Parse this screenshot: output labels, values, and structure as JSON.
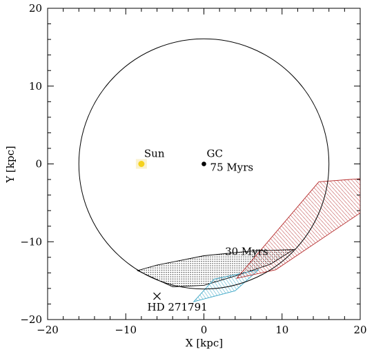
{
  "chart_data": {
    "type": "scatter",
    "xlabel": "X [kpc]",
    "ylabel": "Y [kpc]",
    "xlim": [
      -20,
      20
    ],
    "ylim": [
      -20,
      20
    ],
    "x_ticks": [
      -20,
      -10,
      0,
      10,
      20
    ],
    "y_ticks": [
      -20,
      -10,
      0,
      10,
      20
    ],
    "x_tick_labels": [
      "−20",
      "−10",
      "0",
      "10",
      "20"
    ],
    "y_tick_labels": [
      "−20",
      "−10",
      "0",
      "10",
      "20"
    ],
    "grid": false,
    "circle": {
      "center": [
        0,
        0
      ],
      "radius": 16
    },
    "points": [
      {
        "label": "Sun",
        "x": -8,
        "y": 0,
        "marker": "dot",
        "color": "#f5d21c",
        "glow": "#f6e8a8"
      },
      {
        "label": "GC",
        "x": 0,
        "y": 0,
        "marker": "dot",
        "color": "#000000"
      },
      {
        "label": "HD 271791",
        "x": -6,
        "y": -17,
        "marker": "cross",
        "color": "#000000"
      }
    ],
    "annotations": [
      {
        "text": "75 Myrs",
        "x": 0.8,
        "y": -0.9
      },
      {
        "text": "30 Myrs",
        "x": 2.7,
        "y": -11.7
      }
    ],
    "regions": [
      {
        "name": "30 Myrs",
        "fill": "stipple",
        "color": "#000000",
        "polygon": [
          [
            -8.5,
            -13.7
          ],
          [
            -6,
            -13
          ],
          [
            0,
            -11.8
          ],
          [
            6,
            -11.2
          ],
          [
            11.5,
            -11
          ],
          [
            8.5,
            -12.9
          ],
          [
            4,
            -14.4
          ],
          [
            0,
            -15.6
          ],
          [
            -4,
            -15.8
          ]
        ]
      },
      {
        "name": "cyan",
        "fill": "hatch",
        "color": "#3aa6c6",
        "polygon": [
          [
            -1.3,
            -17.7
          ],
          [
            1.3,
            -14.8
          ],
          [
            7,
            -13.6
          ],
          [
            4,
            -16.3
          ]
        ]
      },
      {
        "name": "red",
        "fill": "hatch",
        "color": "#b52a2a",
        "polygon": [
          [
            4.2,
            -14.7
          ],
          [
            9.2,
            -13.6
          ],
          [
            20,
            -6.3
          ],
          [
            20,
            -1.9
          ],
          [
            14.7,
            -2.3
          ]
        ]
      }
    ]
  }
}
